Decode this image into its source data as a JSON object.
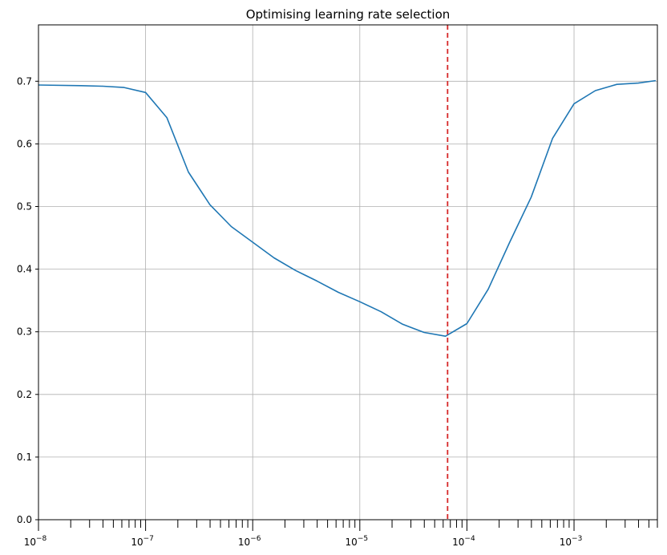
{
  "chart_data": {
    "type": "line",
    "title": "Optimising learning rate selection",
    "xlabel": "",
    "ylabel": "",
    "xscale": "log",
    "xlim": [
      1e-08,
      0.006
    ],
    "ylim": [
      0,
      0.79
    ],
    "grid": true,
    "x_major_ticks": [
      {
        "value": 1e-08,
        "base": "10",
        "exp": "−8"
      },
      {
        "value": 1e-07,
        "base": "10",
        "exp": "−7"
      },
      {
        "value": 1e-06,
        "base": "10",
        "exp": "−6"
      },
      {
        "value": 1e-05,
        "base": "10",
        "exp": "−5"
      },
      {
        "value": 0.0001,
        "base": "10",
        "exp": "−4"
      },
      {
        "value": 0.001,
        "base": "10",
        "exp": "−3"
      }
    ],
    "y_ticks": [
      "0.0",
      "0.1",
      "0.2",
      "0.3",
      "0.4",
      "0.5",
      "0.6",
      "0.7"
    ],
    "series": [
      {
        "color": "#1f77b4",
        "points": [
          [
            1e-08,
            0.694
          ],
          [
            2.5e-08,
            0.693
          ],
          [
            4e-08,
            0.692
          ],
          [
            6.3e-08,
            0.69
          ],
          [
            1e-07,
            0.682
          ],
          [
            1.58e-07,
            0.642
          ],
          [
            2.51e-07,
            0.555
          ],
          [
            3.98e-07,
            0.503
          ],
          [
            6.31e-07,
            0.468
          ],
          [
            1e-06,
            0.443
          ],
          [
            1.58e-06,
            0.418
          ],
          [
            2.51e-06,
            0.398
          ],
          [
            3.98e-06,
            0.381
          ],
          [
            6.31e-06,
            0.363
          ],
          [
            1e-05,
            0.348
          ],
          [
            1.58e-05,
            0.332
          ],
          [
            2.51e-05,
            0.312
          ],
          [
            3.98e-05,
            0.299
          ],
          [
            6.31e-05,
            0.293
          ],
          [
            0.0001,
            0.313
          ],
          [
            0.000158,
            0.368
          ],
          [
            0.000251,
            0.443
          ],
          [
            0.000398,
            0.515
          ],
          [
            0.000631,
            0.609
          ],
          [
            0.001,
            0.664
          ],
          [
            0.00158,
            0.685
          ],
          [
            0.00251,
            0.695
          ],
          [
            0.00398,
            0.697
          ],
          [
            0.0058,
            0.701
          ]
        ]
      }
    ],
    "vline": {
      "x": 6.6e-05,
      "color": "#d62728",
      "style": "dashed"
    }
  }
}
